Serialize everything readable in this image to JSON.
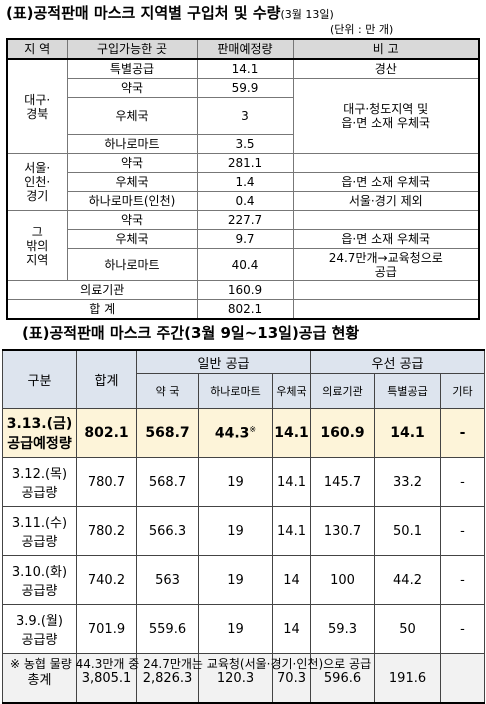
{
  "table1": {
    "title": "(표)공적판매 마스크 지역별 구입처 및 수량",
    "title_date": "(3월 13일)",
    "unit": "(단위 : 만 개)",
    "header": [
      "지 역",
      "구입가능한 곳",
      "판매예정량",
      "비 고"
    ],
    "groups": [
      {
        "region": [
          "대구·",
          "경북"
        ],
        "items": [
          {
            "place": "특별공급",
            "qty": "14.1",
            "note": "경산"
          },
          {
            "place": "약국",
            "qty": "59.9"
          },
          {
            "place": "우체국",
            "qty": "3"
          },
          {
            "place": "하나로마트",
            "qty": "3.5"
          }
        ],
        "shared_note": [
          "대구·청도지역 및",
          "읍·면 소재 우체국"
        ]
      },
      {
        "region": [
          "서울·",
          "인천·",
          "경기"
        ],
        "items": [
          {
            "place": "약국",
            "qty": "281.1"
          },
          {
            "place": "우체국",
            "qty": "1.4",
            "note": "읍·면 소재 우체국"
          },
          {
            "place": "하나로마트(인천)",
            "qty": "0.4",
            "note": "서울·경기 제외"
          }
        ]
      },
      {
        "region": [
          "그",
          "밖의",
          "지역"
        ],
        "items": [
          {
            "place": "약국",
            "qty": "227.7"
          },
          {
            "place": "우체국",
            "qty": "9.7",
            "note": "읍·면 소재 우체국"
          },
          {
            "place": "하나로마트",
            "qty": "40.4",
            "note": [
              "24.7만개→교육청으로",
              "공급"
            ]
          }
        ]
      }
    ],
    "medical": {
      "label": "의료기관",
      "qty": "160.9"
    },
    "total": {
      "label": "합 계",
      "qty": "802.1"
    }
  },
  "table2": {
    "title": "(표)공적판매 마스크 주간(3월 9일~13일)공급 현황",
    "header": {
      "gubun": "구분",
      "total": "합계",
      "general": "일반 공급",
      "general_sub": [
        "약 국",
        "하나로마트",
        "우체국"
      ],
      "priority": "우선 공급",
      "priority_sub": [
        "의료기관",
        "특별공급",
        "기타"
      ]
    },
    "rows": [
      {
        "label": [
          "3.13.(금)",
          "공급예정량"
        ],
        "values": [
          "802.1",
          "568.7",
          "44.3",
          "14.1",
          "160.9",
          "14.1",
          "-"
        ]
      },
      {
        "label": [
          "3.12.(목)",
          "공급량"
        ],
        "values": [
          "780.7",
          "568.7",
          "19",
          "14.1",
          "145.7",
          "33.2",
          "-"
        ]
      },
      {
        "label": [
          "3.11.(수)",
          "공급량"
        ],
        "values": [
          "780.2",
          "566.3",
          "19",
          "14.1",
          "130.7",
          "50.1",
          "-"
        ]
      },
      {
        "label": [
          "3.10.(화)",
          "공급량"
        ],
        "values": [
          "740.2",
          "563",
          "19",
          "14",
          "100",
          "44.2",
          "-"
        ]
      },
      {
        "label": [
          "3.9.(월)",
          "공급량"
        ],
        "values": [
          "701.9",
          "559.6",
          "19",
          "14",
          "59.3",
          "50",
          "-"
        ]
      }
    ],
    "footnote_mark": "※",
    "total_row": {
      "label": "총계",
      "values": [
        "3,805.1",
        "2,826.3",
        "120.3",
        "70.3",
        "596.6",
        "191.6"
      ]
    }
  },
  "footnote": "※ 농협 물량 44.3만개 중 24.7만개는 교육청(서울·경기·인천)으로 공급"
}
